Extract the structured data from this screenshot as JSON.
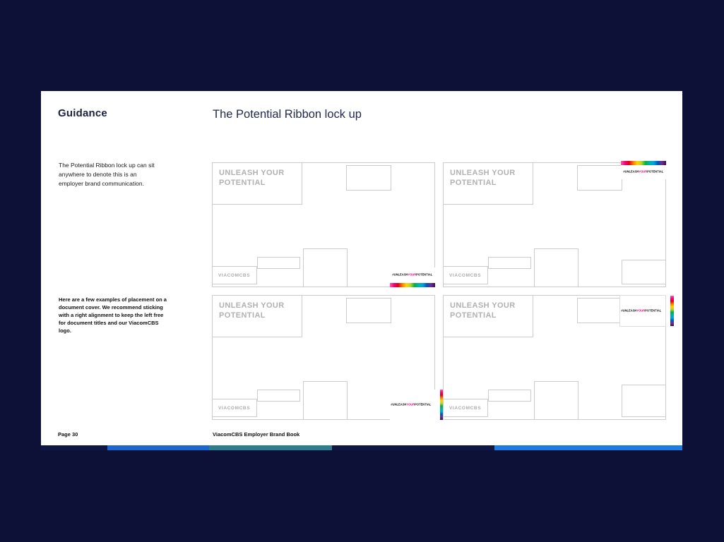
{
  "page": {
    "background": "#0d1138",
    "slide_background": "#ffffff"
  },
  "sidebar": {
    "section_title": "Guidance",
    "paragraph_1": "The Potential Ribbon lock up can sit anywhere to denote this is an employer brand communication.",
    "paragraph_2": "Here are a few examples of placement on a document cover. We recommend sticking with a right alignment to keep the left free for document titles and our ViacomCBS logo.",
    "page_number": "Page 30"
  },
  "main": {
    "heading": "The Potential Ribbon lock up",
    "footer": "ViacomCBS Employer Brand Book"
  },
  "mockup": {
    "headline": "UNLEASH YOUR POTENTIAL",
    "logo": "VIACOMCBS",
    "ribbon": {
      "part1": "#UNLEASH",
      "part2": "YOUR",
      "part3": "POTENTIAL"
    }
  },
  "colors": {
    "heading_navy": "#222a4e",
    "mockup_gray": "#b1b1b1",
    "ribbon_accent": "#e6007e",
    "ribbon_gradient": [
      "#ff5fa2",
      "#f0047f",
      "#e3000f",
      "#ff7900",
      "#ffd500",
      "#b5d334",
      "#00b140",
      "#00b2a9",
      "#00a3e0",
      "#0057b8",
      "#6f2c91",
      "#3b1053"
    ]
  },
  "footer_strip": {
    "segments": [
      {
        "width": "10.35%",
        "color": "#0e1744"
      },
      {
        "width": "15.86%",
        "color": "#1c66cf"
      },
      {
        "width": "19.16%",
        "color": "#2e7d8c"
      },
      {
        "width": "25.33%",
        "color": "#0e1744"
      },
      {
        "width": "29.30%",
        "color": "#1b7ae4"
      }
    ]
  }
}
